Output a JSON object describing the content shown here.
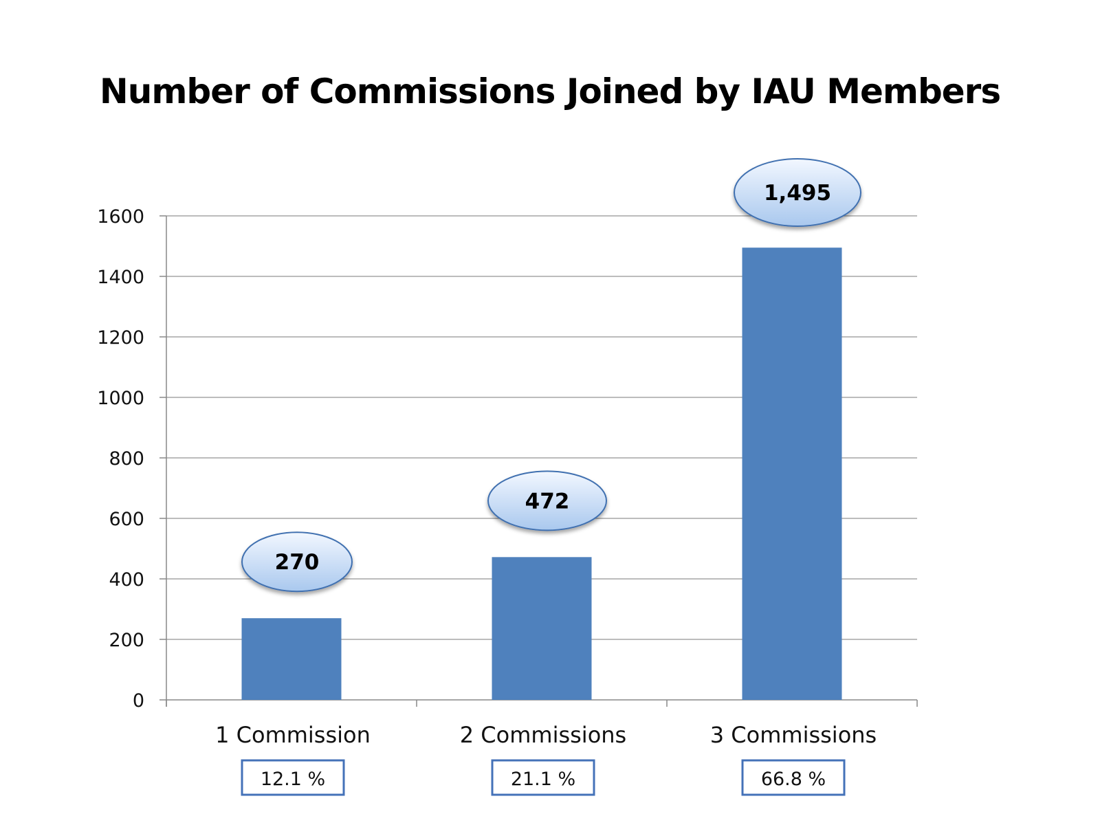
{
  "chart_data": {
    "type": "bar",
    "title": "Number of Commissions Joined by IAU Members",
    "xlabel": "",
    "ylabel": "",
    "categories": [
      "1 Commission",
      "2 Commissions",
      "3 Commissions"
    ],
    "values": [
      270,
      472,
      1495
    ],
    "data_labels": [
      "270",
      "472",
      "1,495"
    ],
    "percent_labels": [
      "12.1 %",
      "21.1 %",
      "66.8 %"
    ],
    "ylim": [
      0,
      1600
    ],
    "yticks": [
      0,
      200,
      400,
      600,
      800,
      1000,
      1200,
      1400,
      1600
    ],
    "ytick_labels": [
      "0",
      "200",
      "400",
      "600",
      "800",
      "1000",
      "1200",
      "1400",
      "1600"
    ],
    "grid": true,
    "legend": "none",
    "colors": {
      "bar": "#4F81BD",
      "bubble_top": "#F2F7FF",
      "bubble_bottom": "#A9C8EE",
      "bubble_stroke": "#3F70B0",
      "box_stroke": "#4472B8",
      "grid": "#A6A6A6"
    }
  }
}
